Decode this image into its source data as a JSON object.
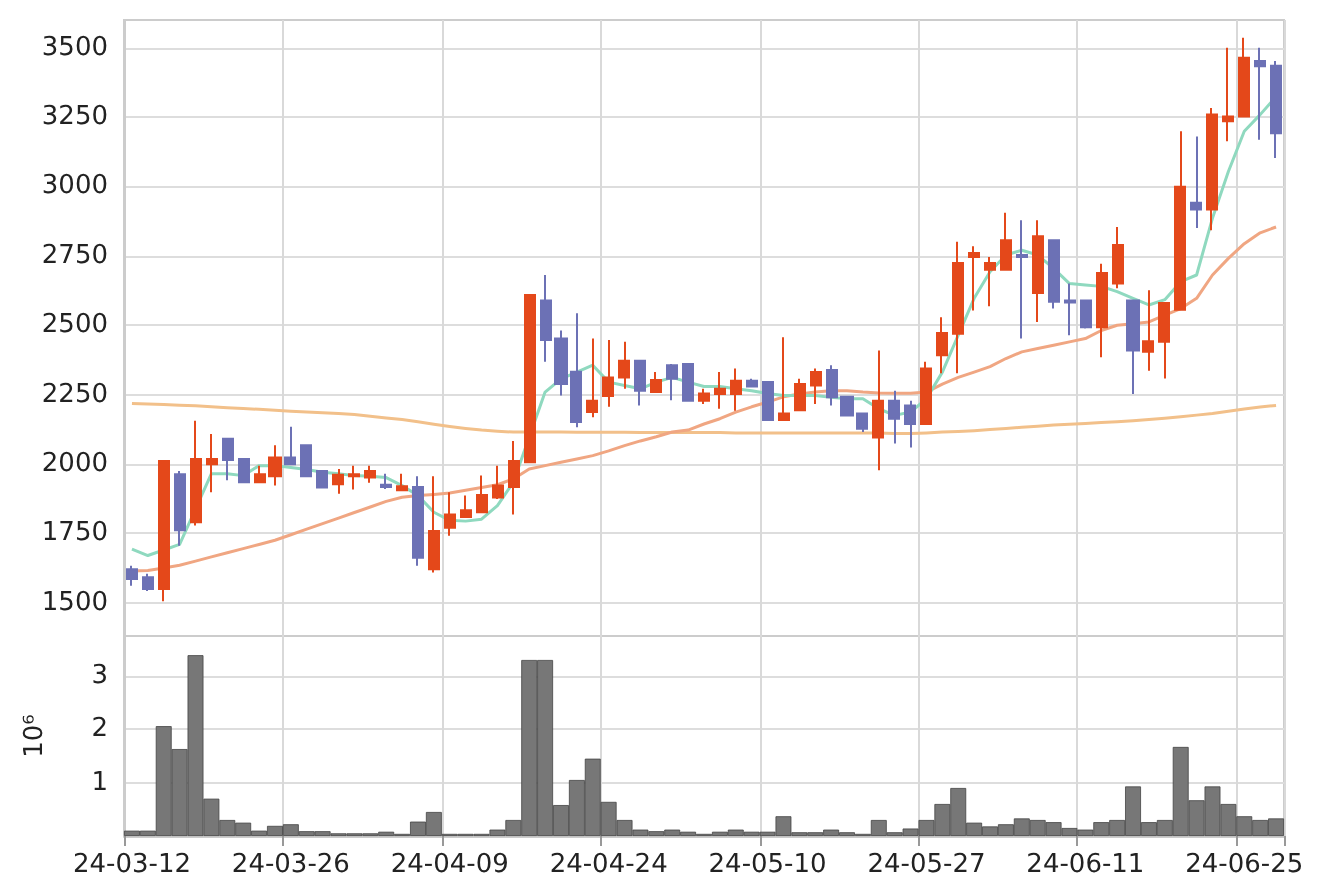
{
  "chart_data": [
    {
      "type": "candlestick",
      "categories": [
        null,
        null,
        null,
        null,
        null,
        null,
        null,
        null,
        null,
        null,
        null,
        null,
        null,
        null,
        null,
        null,
        null,
        null,
        null,
        null,
        null,
        null,
        null,
        null,
        null,
        null,
        null,
        null,
        null,
        null,
        null,
        null,
        null,
        null,
        null,
        null,
        null,
        null,
        null,
        null,
        null,
        null,
        null,
        null,
        null,
        null,
        null,
        null,
        null,
        null,
        null,
        null,
        null,
        null,
        null,
        null,
        null,
        null,
        null,
        null,
        null,
        null,
        null,
        null,
        null,
        null,
        null,
        null,
        null,
        null,
        null,
        null,
        null
      ],
      "ohlc": [
        [
          1621,
          1633,
          1561,
          1585
        ],
        [
          1592,
          1604,
          1542,
          1549
        ],
        [
          1549,
          2011,
          1505,
          2011
        ],
        [
          1963,
          1975,
          1705,
          1761
        ],
        [
          1790,
          2156,
          1778,
          2018
        ],
        [
          1999,
          2108,
          1898,
          2018
        ],
        [
          2091,
          2091,
          1941,
          2014
        ],
        [
          2018,
          2018,
          1934,
          1934
        ],
        [
          1934,
          1994,
          1934,
          1963
        ],
        [
          1956,
          2067,
          1922,
          2023
        ],
        [
          2023,
          2134,
          1999,
          1999
        ],
        [
          2067,
          2067,
          1956,
          1956
        ],
        [
          1975,
          1975,
          1915,
          1915
        ],
        [
          1927,
          1982,
          1893,
          1961
        ],
        [
          1956,
          1994,
          1908,
          1963
        ],
        [
          1951,
          1994,
          1932,
          1975
        ],
        [
          1925,
          1965,
          1910,
          1917
        ],
        [
          1905,
          1965,
          1905,
          1920
        ],
        [
          1917,
          1956,
          1633,
          1662
        ],
        [
          1621,
          1956,
          1609,
          1758
        ],
        [
          1770,
          1898,
          1741,
          1818
        ],
        [
          1809,
          1886,
          1809,
          1833
        ],
        [
          1826,
          1958,
          1826,
          1888
        ],
        [
          1879,
          1994,
          1874,
          1922
        ],
        [
          1917,
          2083,
          1818,
          2011
        ],
        [
          2006,
          2609,
          2006,
          2609
        ],
        [
          2589,
          2681,
          2368,
          2447
        ],
        [
          2452,
          2481,
          2247,
          2288
        ],
        [
          2332,
          2543,
          2132,
          2151
        ],
        [
          2187,
          2452,
          2168,
          2228
        ],
        [
          2245,
          2447,
          2206,
          2312
        ],
        [
          2312,
          2440,
          2271,
          2372
        ],
        [
          2372,
          2372,
          2211,
          2264
        ],
        [
          2259,
          2331,
          2259,
          2303
        ],
        [
          2356,
          2360,
          2230,
          2307
        ],
        [
          2360,
          2360,
          2228,
          2228
        ],
        [
          2228,
          2271,
          2216,
          2254
        ],
        [
          2252,
          2331,
          2199,
          2271
        ],
        [
          2252,
          2344,
          2192,
          2300
        ],
        [
          2300,
          2307,
          2279,
          2279
        ],
        [
          2295,
          2295,
          2158,
          2158
        ],
        [
          2158,
          2457,
          2158,
          2182
        ],
        [
          2194,
          2307,
          2194,
          2288
        ],
        [
          2283,
          2344,
          2216,
          2331
        ],
        [
          2339,
          2356,
          2211,
          2240
        ],
        [
          2242,
          2242,
          2175,
          2175
        ],
        [
          2182,
          2182,
          2115,
          2127
        ],
        [
          2095,
          2409,
          1977,
          2228
        ],
        [
          2228,
          2264,
          2074,
          2163
        ],
        [
          2211,
          2228,
          2059,
          2144
        ],
        [
          2144,
          2368,
          2144,
          2344
        ],
        [
          2392,
          2529,
          2327,
          2472
        ],
        [
          2469,
          2801,
          2327,
          2724
        ],
        [
          2746,
          2785,
          2553,
          2760
        ],
        [
          2700,
          2746,
          2568,
          2724
        ],
        [
          2700,
          2905,
          2700,
          2806
        ],
        [
          2753,
          2878,
          2452,
          2746
        ],
        [
          2616,
          2878,
          2512,
          2821
        ],
        [
          2806,
          2806,
          2560,
          2585
        ],
        [
          2589,
          2650,
          2464,
          2582
        ],
        [
          2589,
          2589,
          2488,
          2493
        ],
        [
          2493,
          2722,
          2385,
          2688
        ],
        [
          2650,
          2854,
          2633,
          2789
        ],
        [
          2589,
          2589,
          2252,
          2409
        ],
        [
          2404,
          2626,
          2336,
          2442
        ],
        [
          2440,
          2580,
          2308,
          2580
        ],
        [
          2556,
          3199,
          2556,
          2999
        ],
        [
          2941,
          3180,
          2850,
          2917
        ],
        [
          2917,
          3283,
          2842,
          3259
        ],
        [
          3235,
          3500,
          3163,
          3252
        ],
        [
          3252,
          3536,
          3252,
          3464
        ],
        [
          3452,
          3500,
          3168,
          3433
        ],
        [
          3435,
          3452,
          3103,
          3192
        ]
      ],
      "colors": [
        "#6c71b5",
        "#6c71b5",
        "#e4481a",
        "#6c71b5",
        "#e4481a",
        "#e4481a",
        "#6c71b5",
        "#6c71b5",
        "#e4481a",
        "#e4481a",
        "#6c71b5",
        "#6c71b5",
        "#6c71b5",
        "#e4481a",
        "#e4481a",
        "#e4481a",
        "#6c71b5",
        "#e4481a",
        "#6c71b5",
        "#e4481a",
        "#e4481a",
        "#e4481a",
        "#e4481a",
        "#e4481a",
        "#e4481a",
        "#e4481a",
        "#6c71b5",
        "#6c71b5",
        "#6c71b5",
        "#e4481a",
        "#e4481a",
        "#e4481a",
        "#6c71b5",
        "#e4481a",
        "#6c71b5",
        "#6c71b5",
        "#e4481a",
        "#e4481a",
        "#e4481a",
        "#6c71b5",
        "#6c71b5",
        "#e4481a",
        "#e4481a",
        "#e4481a",
        "#6c71b5",
        "#6c71b5",
        "#6c71b5",
        "#e4481a",
        "#6c71b5",
        "#6c71b5",
        "#e4481a",
        "#e4481a",
        "#e4481a",
        "#e4481a",
        "#e4481a",
        "#e4481a",
        "#6c71b5",
        "#e4481a",
        "#6c71b5",
        "#6c71b5",
        "#6c71b5",
        "#e4481a",
        "#e4481a",
        "#6c71b5",
        "#e4481a",
        "#e4481a",
        "#e4481a",
        "#6c71b5",
        "#e4481a",
        "#e4481a",
        "#e4481a",
        "#6c71b5",
        "#6c71b5"
      ],
      "series": [
        {
          "type": "line",
          "color": "#8fd9bf",
          "values": [
            1693,
            1670,
            1690,
            1710,
            null,
            1965,
            1965,
            1958,
            1994,
            1994,
            1987,
            1980,
            1970,
            1965,
            1958,
            1956,
            1951,
            1922,
            1886,
            1826,
            1797,
            1794,
            1801,
            1850,
            1934,
            null,
            2259,
            2307,
            2331,
            2356,
            2295,
            2283,
            2271,
            2295,
            2312,
            2295,
            2279,
            2279,
            2271,
            2264,
            2254,
            2247,
            2247,
            2247,
            2240,
            2235,
            2235,
            2199,
            2175,
            2187,
            2235,
            2331,
            2464,
            2597,
            2693,
            2753,
            2770,
            2753,
            2705,
            2650,
            2645,
            2640,
            2621,
            2597,
            2573,
            2592,
            2657,
            2681,
            2886,
            3054,
            3199,
            3259,
            3324
          ]
        },
        {
          "type": "line",
          "color": "#f0a682",
          "values": [
            1614,
            1616,
            1625,
            1635,
            1650,
            1665,
            1680,
            1695,
            1710,
            1725,
            1745,
            1765,
            1785,
            1805,
            1825,
            1845,
            1865,
            1880,
            1886,
            1890,
            1895,
            1905,
            1915,
            1925,
            1946,
            1982,
            1994,
            2006,
            2018,
            2030,
            2047,
            2066,
            2083,
            2098,
            2115,
            2122,
            2144,
            2163,
            2187,
            2206,
            2223,
            2242,
            2252,
            2259,
            2264,
            2264,
            2259,
            2256,
            2255,
            2255,
            2259,
            2288,
            2312,
            2331,
            2351,
            2380,
            2404,
            2416,
            2428,
            2440,
            2452,
            2481,
            2500,
            2505,
            2512,
            2536,
            2560,
            2597,
            2681,
            2741,
            2794,
            2833,
            2854
          ]
        },
        {
          "type": "line",
          "color": "#f2c08a",
          "values": [
            2218,
            2216,
            2214,
            2212,
            2210,
            2206,
            2203,
            2200,
            2197,
            2194,
            2190,
            2187,
            2185,
            2182,
            2178,
            2172,
            2166,
            2160,
            2152,
            2143,
            2135,
            2128,
            2122,
            2118,
            2115,
            2115,
            2115,
            2115,
            2114,
            2114,
            2114,
            2114,
            2113,
            2113,
            2113,
            2113,
            2113,
            2113,
            2112,
            2112,
            2112,
            2112,
            2112,
            2112,
            2112,
            2112,
            2112,
            2112,
            2110,
            2110,
            2112,
            2115,
            2117,
            2120,
            2124,
            2128,
            2132,
            2136,
            2140,
            2143,
            2146,
            2149,
            2152,
            2156,
            2160,
            2165,
            2170,
            2176,
            2182,
            2190,
            2198,
            2205,
            2211
          ]
        }
      ],
      "ylim": [
        1380,
        3600
      ],
      "yticks": [
        1500,
        1750,
        2000,
        2250,
        2500,
        2750,
        3000,
        3250,
        3500
      ],
      "grid": true,
      "tick_labels": "y",
      "marker": "none"
    },
    {
      "type": "bar",
      "categories": [
        "24-03-12",
        null,
        null,
        null,
        null,
        null,
        null,
        null,
        null,
        null,
        "24-03-26",
        null,
        null,
        null,
        null,
        null,
        null,
        null,
        null,
        null,
        "24-04-09",
        null,
        null,
        null,
        null,
        null,
        null,
        null,
        null,
        null,
        "24-04-24",
        null,
        null,
        null,
        null,
        null,
        null,
        null,
        null,
        null,
        "24-05-10",
        null,
        null,
        null,
        null,
        null,
        null,
        null,
        null,
        null,
        "24-05-27",
        null,
        null,
        null,
        null,
        null,
        null,
        null,
        null,
        null,
        "24-06-11",
        null,
        null,
        null,
        null,
        null,
        null,
        null,
        null,
        null,
        "24-06-25",
        null,
        null
      ],
      "values": [
        0.1,
        0.1,
        2.06,
        1.63,
        3.39,
        0.7,
        0.3,
        0.25,
        0.1,
        0.19,
        0.22,
        0.09,
        0.09,
        0.05,
        0.05,
        0.05,
        0.08,
        0.04,
        0.27,
        0.45,
        0.04,
        0.04,
        0.04,
        0.12,
        0.3,
        3.3,
        3.3,
        0.58,
        1.05,
        1.45,
        0.64,
        0.3,
        0.12,
        0.09,
        0.12,
        0.08,
        0.04,
        0.08,
        0.12,
        0.08,
        0.08,
        0.37,
        0.07,
        0.07,
        0.12,
        0.07,
        0.04,
        0.3,
        0.07,
        0.14,
        0.3,
        0.6,
        0.9,
        0.25,
        0.18,
        0.22,
        0.33,
        0.3,
        0.26,
        0.15,
        0.12,
        0.26,
        0.3,
        0.93,
        0.26,
        0.3,
        1.67,
        0.67,
        0.93,
        0.6,
        0.37,
        0.3,
        0.33
      ],
      "color": "#777777",
      "ylabel": "10⁶",
      "ylim": [
        0,
        3.75
      ],
      "yticks": [
        1,
        2,
        3
      ],
      "grid": true
    }
  ]
}
